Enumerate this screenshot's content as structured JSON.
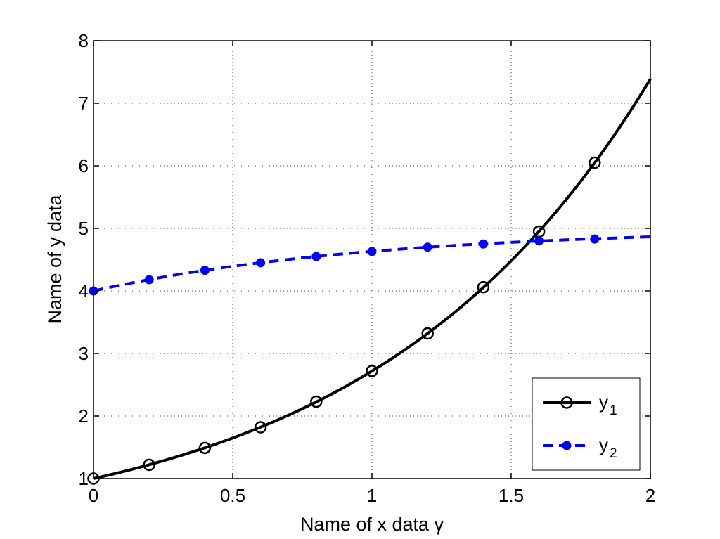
{
  "chart_data": {
    "type": "line",
    "xlabel": "Name of x data γ",
    "ylabel": "Name of y data",
    "xlim": [
      0,
      2
    ],
    "ylim": [
      1,
      8
    ],
    "xticks": [
      0,
      0.5,
      1,
      1.5,
      2
    ],
    "xtick_labels": [
      "0",
      "0.5",
      "1",
      "1.5",
      "2"
    ],
    "yticks": [
      1,
      2,
      3,
      4,
      5,
      6,
      7,
      8
    ],
    "ytick_labels": [
      "1",
      "2",
      "3",
      "4",
      "5",
      "6",
      "7",
      "8"
    ],
    "grid": true,
    "legend_position": "bottom-right",
    "series": [
      {
        "name": "y1",
        "legend_base": "y",
        "legend_sub": "1",
        "color": "#000000",
        "line_style": "solid",
        "marker": "open-circle",
        "line_function": "exp(x)",
        "x": [
          0,
          0.2,
          0.4,
          0.6,
          0.8,
          1.0,
          1.2,
          1.4,
          1.6,
          1.8
        ],
        "y": [
          1.0,
          1.22,
          1.49,
          1.82,
          2.23,
          2.72,
          3.32,
          4.06,
          4.95,
          6.05
        ]
      },
      {
        "name": "y2",
        "legend_base": "y",
        "legend_sub": "2",
        "color": "#0000ff",
        "line_style": "dashed",
        "marker": "filled-dot",
        "line_function": "5 - exp(-x)",
        "x": [
          0,
          0.2,
          0.4,
          0.6,
          0.8,
          1.0,
          1.2,
          1.4,
          1.6,
          1.8
        ],
        "y": [
          4.0,
          4.18,
          4.33,
          4.45,
          4.55,
          4.63,
          4.7,
          4.75,
          4.8,
          4.83
        ]
      }
    ]
  }
}
